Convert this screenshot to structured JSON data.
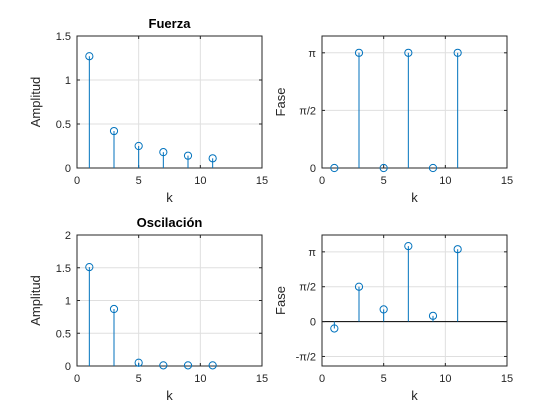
{
  "chart_data": [
    {
      "type": "stem",
      "title": "Fuerza",
      "xlabel": "k",
      "ylabel": "Amplitud",
      "xlim": [
        0,
        15
      ],
      "ylim": [
        0,
        1.5
      ],
      "xticks": [
        0,
        5,
        10,
        15
      ],
      "xtick_labels": [
        "0",
        "5",
        "10",
        "15"
      ],
      "yticks": [
        0,
        0.5,
        1,
        1.5
      ],
      "ytick_labels": [
        "0",
        "0.5",
        "1",
        "1.5"
      ],
      "grid": true,
      "color": "#0072BD",
      "x": [
        1,
        3,
        5,
        7,
        9,
        11
      ],
      "y": [
        1.27,
        0.42,
        0.25,
        0.18,
        0.14,
        0.11
      ]
    },
    {
      "type": "stem",
      "title": "",
      "xlabel": "k",
      "ylabel": "Fase",
      "xlim": [
        0,
        15
      ],
      "ylim": [
        0,
        3.6
      ],
      "xticks": [
        0,
        5,
        10,
        15
      ],
      "xtick_labels": [
        "0",
        "5",
        "10",
        "15"
      ],
      "yticks": [
        0,
        1.5708,
        3.1416
      ],
      "ytick_labels": [
        "0",
        "π/2",
        "π"
      ],
      "grid": true,
      "color": "#0072BD",
      "x": [
        1,
        3,
        5,
        7,
        9,
        11
      ],
      "y": [
        0,
        3.1416,
        0,
        3.1416,
        0,
        3.1416
      ]
    },
    {
      "type": "stem",
      "title": "Oscilación",
      "xlabel": "k",
      "ylabel": "Amplitud",
      "xlim": [
        0,
        15
      ],
      "ylim": [
        0,
        2
      ],
      "xticks": [
        0,
        5,
        10,
        15
      ],
      "xtick_labels": [
        "0",
        "5",
        "10",
        "15"
      ],
      "yticks": [
        0,
        0.5,
        1,
        1.5,
        2
      ],
      "ytick_labels": [
        "0",
        "0.5",
        "1",
        "1.5",
        "2"
      ],
      "grid": true,
      "color": "#0072BD",
      "x": [
        1,
        3,
        5,
        7,
        9,
        11
      ],
      "y": [
        1.51,
        0.87,
        0.05,
        0.01,
        0.01,
        0.01
      ]
    },
    {
      "type": "stem",
      "title": "",
      "xlabel": "k",
      "ylabel": "Fase",
      "xlim": [
        0,
        15
      ],
      "ylim": [
        -2.0,
        3.9
      ],
      "xticks": [
        0,
        5,
        10,
        15
      ],
      "xtick_labels": [
        "0",
        "5",
        "10",
        "15"
      ],
      "yticks": [
        -1.5708,
        0,
        1.5708,
        3.1416
      ],
      "ytick_labels": [
        "-π/2",
        "0",
        "π/2",
        "π"
      ],
      "grid": true,
      "color": "#0072BD",
      "x": [
        1,
        3,
        5,
        7,
        9,
        11
      ],
      "y": [
        -0.31,
        1.57,
        0.55,
        3.4,
        0.26,
        3.26
      ]
    }
  ]
}
